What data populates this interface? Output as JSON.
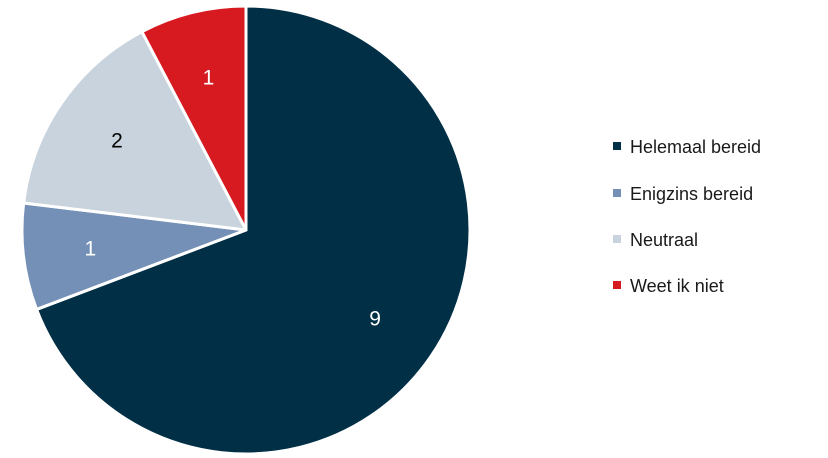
{
  "chart_data": {
    "type": "pie",
    "title": "",
    "categories": [
      "Helemaal bereid",
      "Enigzins bereid",
      "Neutraal",
      "Weet ik niet"
    ],
    "values": [
      9,
      1,
      2,
      1
    ],
    "data_labels": [
      "9",
      "1",
      "2",
      "1"
    ],
    "colors": [
      "#002f46",
      "#7490b6",
      "#c8d3dd",
      "#d71920"
    ],
    "label_colors": [
      "#ffffff",
      "#ffffff",
      "#000000",
      "#ffffff"
    ],
    "start_angle_deg": 0,
    "direction": "clockwise",
    "legend": {
      "position": "right",
      "entries": [
        "Helemaal bereid",
        "Enigzins bereid",
        "Neutraal",
        "Weet ik niet"
      ]
    }
  }
}
